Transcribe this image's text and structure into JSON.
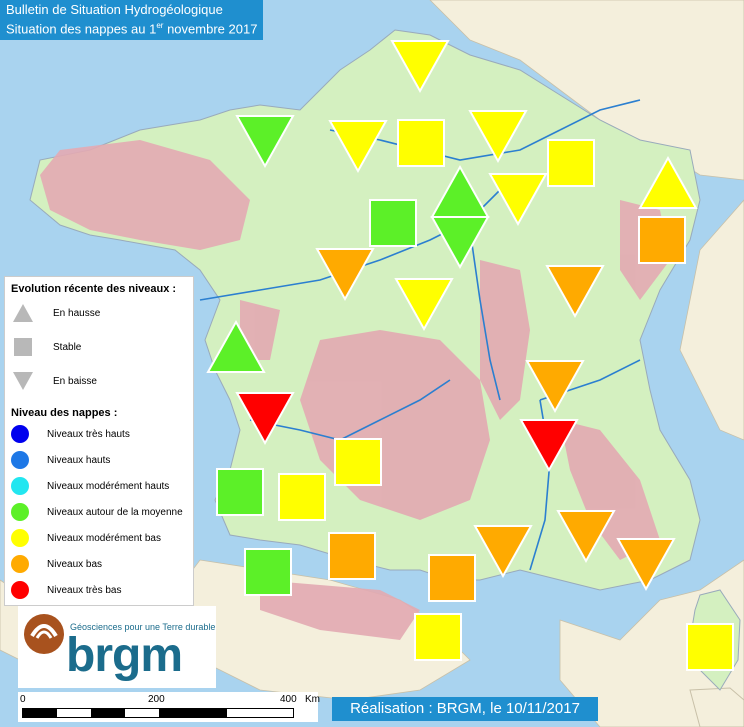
{
  "header": {
    "title_line1": "Bulletin de Situation Hydrogéologique",
    "title_line2_pre": "Situation des nappes au 1",
    "title_line2_sup": "er",
    "title_line2_post": " novembre 2017"
  },
  "legend": {
    "evolution_title": "Evolution récente des niveaux :",
    "evolution_items": [
      {
        "shape": "triangle-up",
        "label": "En hausse"
      },
      {
        "shape": "square",
        "label": "Stable"
      },
      {
        "shape": "triangle-down",
        "label": "En baisse"
      }
    ],
    "level_title": "Niveau des nappes :",
    "level_items": [
      {
        "label": "Niveaux très hauts",
        "color": "#0000ee"
      },
      {
        "label": "Niveaux hauts",
        "color": "#1e78e6"
      },
      {
        "label": "Niveaux modérément hauts",
        "color": "#22e6f0"
      },
      {
        "label": "Niveaux autour de la moyenne",
        "color": "#5cf028"
      },
      {
        "label": "Niveaux modérément bas",
        "color": "#ffff00"
      },
      {
        "label": "Niveaux bas",
        "color": "#ffaa00"
      },
      {
        "label": "Niveaux très bas",
        "color": "#ff0000"
      }
    ]
  },
  "logo": {
    "tagline": "Géosciences pour une Terre durable",
    "name": "brgm"
  },
  "scale": {
    "tick_0": "0",
    "tick_200": "200",
    "tick_400": "400",
    "unit": "Km"
  },
  "credit": "Réalisation : BRGM, le 10/11/2017",
  "colors": {
    "sea": "#a9d3ef",
    "land": "#d4f0c0",
    "neighbor_land": "#f4efdc",
    "relief": "#e3aab2",
    "river": "#2b7fd0",
    "title_bg": "#1f8fcf"
  },
  "stations": [
    {
      "shape": "down",
      "level": "Niveaux modérément bas"
    },
    {
      "shape": "down",
      "level": "Niveaux autour de la moyenne"
    },
    {
      "shape": "down",
      "level": "Niveaux modérément bas"
    },
    {
      "shape": "square",
      "level": "Niveaux modérément bas"
    },
    {
      "shape": "down",
      "level": "Niveaux modérément bas"
    },
    {
      "shape": "square",
      "level": "Niveaux modérément bas"
    },
    {
      "shape": "up",
      "level": "Niveaux autour de la moyenne"
    },
    {
      "shape": "down",
      "level": "Niveaux modérément bas"
    },
    {
      "shape": "up",
      "level": "Niveaux modérément bas"
    },
    {
      "shape": "square",
      "level": "Niveaux autour de la moyenne"
    },
    {
      "shape": "down",
      "level": "Niveaux autour de la moyenne"
    },
    {
      "shape": "square",
      "level": "Niveaux bas"
    },
    {
      "shape": "down",
      "level": "Niveaux bas"
    },
    {
      "shape": "down",
      "level": "Niveaux modérément bas"
    },
    {
      "shape": "down",
      "level": "Niveaux bas"
    },
    {
      "shape": "up",
      "level": "Niveaux autour de la moyenne"
    },
    {
      "shape": "down",
      "level": "Niveaux bas"
    },
    {
      "shape": "down",
      "level": "Niveaux très bas"
    },
    {
      "shape": "down",
      "level": "Niveaux très bas"
    },
    {
      "shape": "square",
      "level": "Niveaux modérément bas"
    },
    {
      "shape": "square",
      "level": "Niveaux autour de la moyenne"
    },
    {
      "shape": "square",
      "level": "Niveaux modérément bas"
    },
    {
      "shape": "down",
      "level": "Niveaux bas"
    },
    {
      "shape": "down",
      "level": "Niveaux bas"
    },
    {
      "shape": "down",
      "level": "Niveaux bas"
    },
    {
      "shape": "square",
      "level": "Niveaux autour de la moyenne"
    },
    {
      "shape": "square",
      "level": "Niveaux bas"
    },
    {
      "shape": "square",
      "level": "Niveaux bas"
    },
    {
      "shape": "square",
      "level": "Niveaux modérément bas"
    },
    {
      "shape": "square",
      "level": "Niveaux modérément bas"
    }
  ]
}
